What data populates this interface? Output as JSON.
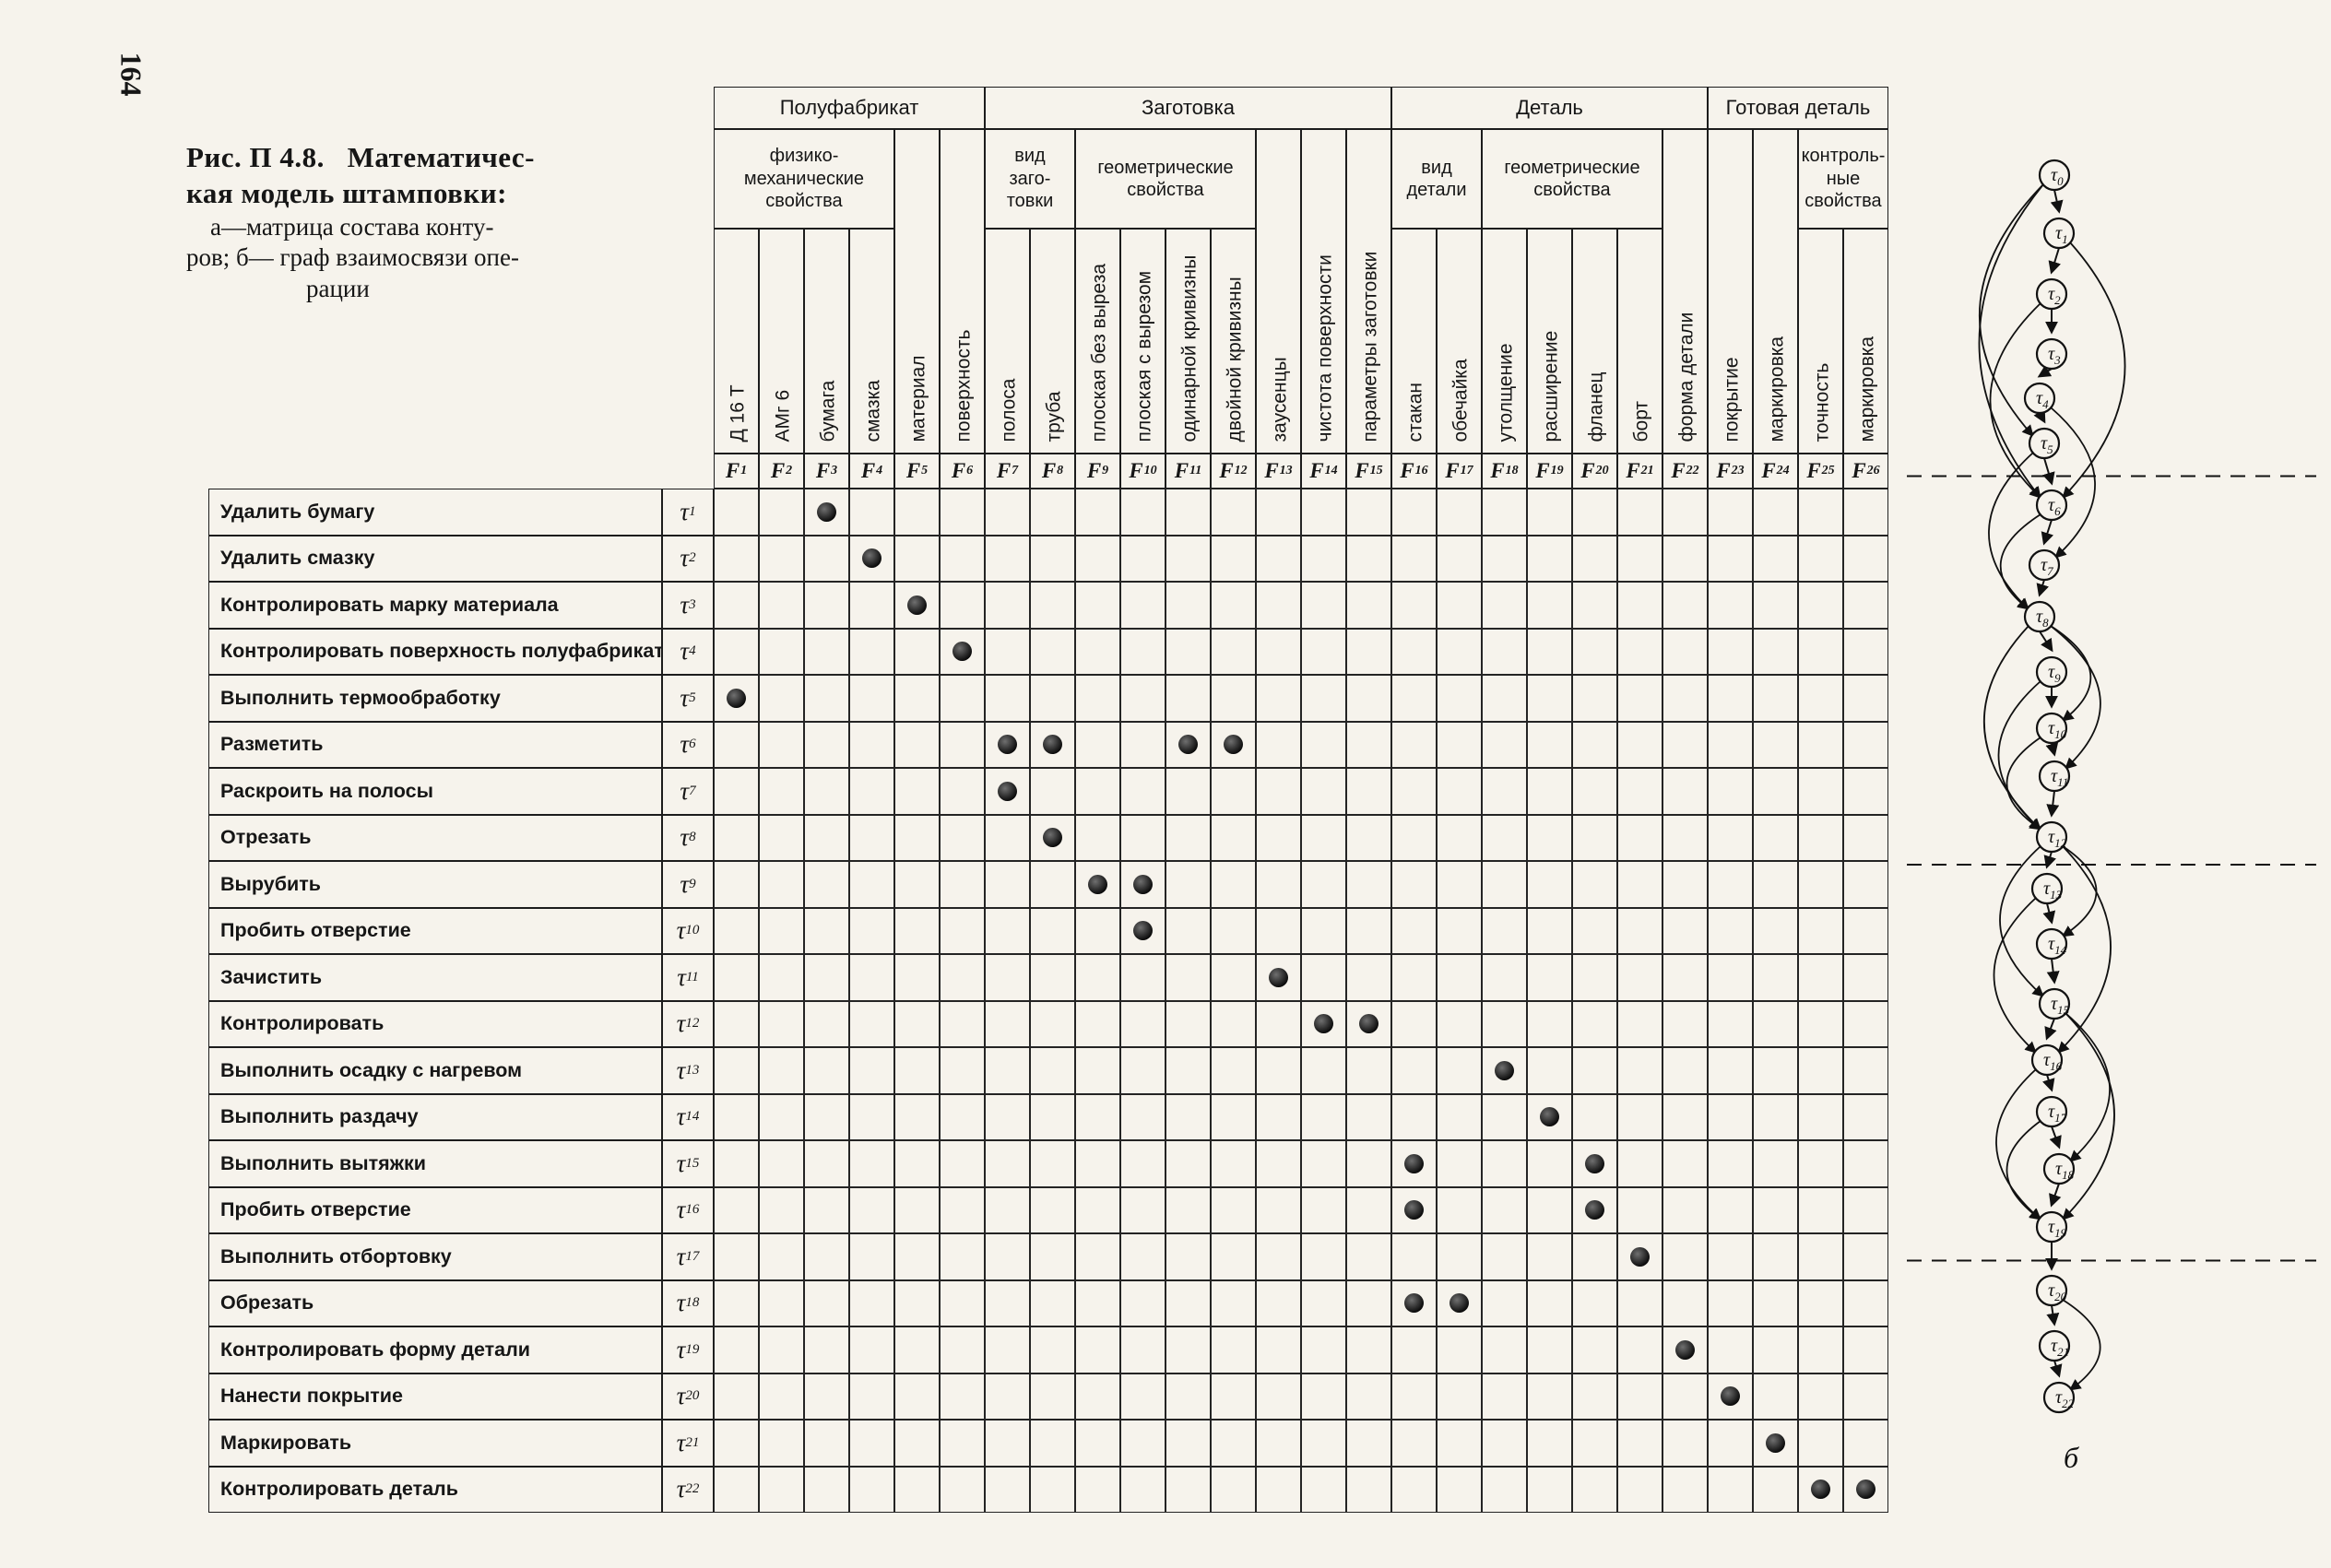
{
  "page": {
    "number": "164"
  },
  "caption": {
    "fig": "Рис. П 4.8.",
    "lines": [
      "Математичес-",
      "кая модель штамповки:",
      "а—матрица состава конту-",
      "ров; б— граф взаимосвязи опе-",
      "рации"
    ]
  },
  "matrix": {
    "groups": [
      {
        "label": "Полуфабрикат",
        "from": 1,
        "to": 6
      },
      {
        "label": "Заготовка",
        "from": 7,
        "to": 15
      },
      {
        "label": "Деталь",
        "from": 16,
        "to": 22
      },
      {
        "label": "Готовая деталь",
        "from": 23,
        "to": 26
      }
    ],
    "subgroups": [
      {
        "label": "физико-\nмеханические\nсвойства",
        "from": 1,
        "to": 4
      },
      {
        "label": "вид\nзаго-\nтовки",
        "from": 7,
        "to": 8
      },
      {
        "label": "геометрические\nсвойства",
        "from": 9,
        "to": 12
      },
      {
        "label": "вид\nдетали",
        "from": 16,
        "to": 17
      },
      {
        "label": "геометрические\nсвойства",
        "from": 18,
        "to": 21
      },
      {
        "label": "контроль-\nные\nсвойства",
        "from": 25,
        "to": 26
      }
    ],
    "columns": [
      {
        "sub": "1",
        "label": "Д 16 Т",
        "tall": false
      },
      {
        "sub": "2",
        "label": "АМг 6",
        "tall": false
      },
      {
        "sub": "3",
        "label": "бумага",
        "tall": false
      },
      {
        "sub": "4",
        "label": "смазка",
        "tall": false
      },
      {
        "sub": "5",
        "label": "материал",
        "tall": true
      },
      {
        "sub": "6",
        "label": "поверхность",
        "tall": true
      },
      {
        "sub": "7",
        "label": "полоса",
        "tall": false
      },
      {
        "sub": "8",
        "label": "труба",
        "tall": false
      },
      {
        "sub": "9",
        "label": "плоская без выреза",
        "tall": false
      },
      {
        "sub": "10",
        "label": "плоская с вырезом",
        "tall": false
      },
      {
        "sub": "11",
        "label": "одинарной кривизны",
        "tall": false
      },
      {
        "sub": "12",
        "label": "двойной кривизны",
        "tall": false
      },
      {
        "sub": "13",
        "label": "заусенцы",
        "tall": true
      },
      {
        "sub": "14",
        "label": "чистота поверхности",
        "tall": true
      },
      {
        "sub": "15",
        "label": "параметры заготовки",
        "tall": true
      },
      {
        "sub": "16",
        "label": "стакан",
        "tall": false
      },
      {
        "sub": "17",
        "label": "обечайка",
        "tall": false
      },
      {
        "sub": "18",
        "label": "утолщение",
        "tall": false
      },
      {
        "sub": "19",
        "label": "расширение",
        "tall": false
      },
      {
        "sub": "20",
        "label": "фланец",
        "tall": false
      },
      {
        "sub": "21",
        "label": "борт",
        "tall": false
      },
      {
        "sub": "22",
        "label": "форма детали",
        "tall": true
      },
      {
        "sub": "23",
        "label": "покрытие",
        "tall": true
      },
      {
        "sub": "24",
        "label": "маркировка",
        "tall": true
      },
      {
        "sub": "25",
        "label": "точность",
        "tall": false
      },
      {
        "sub": "26",
        "label": "маркировка",
        "tall": false
      }
    ],
    "rows": [
      {
        "label": "Удалить бумагу",
        "tau": "1",
        "marks": [
          3
        ]
      },
      {
        "label": "Удалить смазку",
        "tau": "2",
        "marks": [
          4
        ]
      },
      {
        "label": "Контролировать марку материала",
        "tau": "3",
        "marks": [
          5
        ]
      },
      {
        "label": "Контролировать поверхность полуфабриката",
        "tau": "4",
        "marks": [
          6
        ]
      },
      {
        "label": "Выполнить термообработку",
        "tau": "5",
        "marks": [
          1
        ]
      },
      {
        "label": "Разметить",
        "tau": "6",
        "marks": [
          7,
          8,
          11,
          12
        ]
      },
      {
        "label": "Раскроить на полосы",
        "tau": "7",
        "marks": [
          7
        ]
      },
      {
        "label": "Отрезать",
        "tau": "8",
        "marks": [
          8
        ]
      },
      {
        "label": "Вырубить",
        "tau": "9",
        "marks": [
          9,
          10
        ]
      },
      {
        "label": "Пробить отверстие",
        "tau": "10",
        "marks": [
          10
        ]
      },
      {
        "label": "Зачистить",
        "tau": "11",
        "marks": [
          13
        ]
      },
      {
        "label": "Контролировать",
        "tau": "12",
        "marks": [
          14,
          15
        ]
      },
      {
        "label": "Выполнить осадку с нагревом",
        "tau": "13",
        "marks": [
          18
        ]
      },
      {
        "label": "Выполнить раздачу",
        "tau": "14",
        "marks": [
          19
        ]
      },
      {
        "label": "Выполнить вытяжки",
        "tau": "15",
        "marks": [
          16,
          20
        ]
      },
      {
        "label": "Пробить отверстие",
        "tau": "16",
        "marks": [
          16,
          20
        ]
      },
      {
        "label": "Выполнить отбортовку",
        "tau": "17",
        "marks": [
          21
        ]
      },
      {
        "label": "Обрезать",
        "tau": "18",
        "marks": [
          16,
          17
        ]
      },
      {
        "label": "Контролировать форму детали",
        "tau": "19",
        "marks": [
          22
        ]
      },
      {
        "label": "Нанести покрытие",
        "tau": "20",
        "marks": [
          23
        ]
      },
      {
        "label": "Маркировать",
        "tau": "21",
        "marks": [
          24
        ]
      },
      {
        "label": "Контролировать деталь",
        "tau": "22",
        "marks": [
          25,
          26
        ]
      }
    ]
  },
  "graph": {
    "label": "б",
    "nodes": [
      "0",
      "1",
      "2",
      "3",
      "4",
      "5",
      "6",
      "7",
      "8",
      "9",
      "10",
      "11",
      "12",
      "13",
      "14",
      "15",
      "16",
      "17",
      "18",
      "19",
      "20",
      "21",
      "22"
    ],
    "separators_after": [
      5,
      12,
      19
    ],
    "arcs": [
      {
        "from": 0,
        "to": 5,
        "side": "left"
      },
      {
        "from": 0,
        "to": 6,
        "side": "left"
      },
      {
        "from": 2,
        "to": 6,
        "side": "left"
      },
      {
        "from": 1,
        "to": 6,
        "side": "right"
      },
      {
        "from": 4,
        "to": 7,
        "side": "right"
      },
      {
        "from": 5,
        "to": 8,
        "side": "left"
      },
      {
        "from": 6,
        "to": 8,
        "side": "left"
      },
      {
        "from": 8,
        "to": 10,
        "side": "right"
      },
      {
        "from": 8,
        "to": 11,
        "side": "right"
      },
      {
        "from": 8,
        "to": 12,
        "side": "left"
      },
      {
        "from": 9,
        "to": 12,
        "side": "left"
      },
      {
        "from": 10,
        "to": 12,
        "side": "left"
      },
      {
        "from": 12,
        "to": 14,
        "side": "right"
      },
      {
        "from": 12,
        "to": 15,
        "side": "left"
      },
      {
        "from": 12,
        "to": 16,
        "side": "right"
      },
      {
        "from": 13,
        "to": 16,
        "side": "left"
      },
      {
        "from": 15,
        "to": 18,
        "side": "right"
      },
      {
        "from": 15,
        "to": 19,
        "side": "right"
      },
      {
        "from": 16,
        "to": 19,
        "side": "left"
      },
      {
        "from": 17,
        "to": 19,
        "side": "left"
      },
      {
        "from": 20,
        "to": 22,
        "side": "right"
      }
    ]
  }
}
